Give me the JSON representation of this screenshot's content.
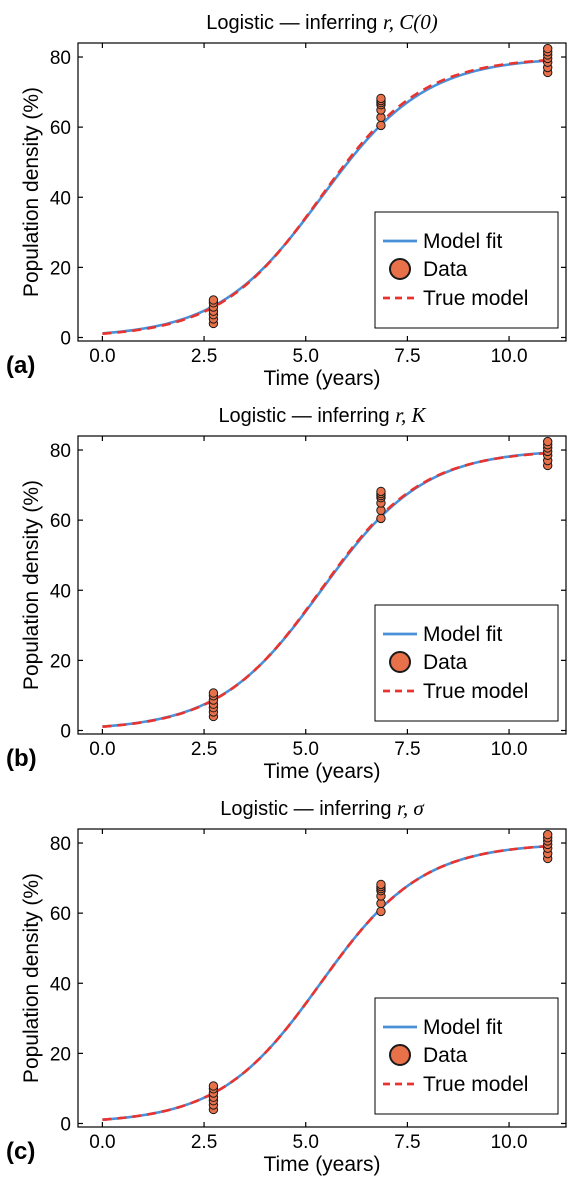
{
  "colors": {
    "model_fit": "#4a90d9",
    "data_fill": "#e8714a",
    "data_edge": "#1a1a1a",
    "true_model": "#e8332f",
    "axis": "#000000"
  },
  "legend": {
    "model_fit": "Model fit",
    "data": "Data",
    "true_model": "True model",
    "placement": "lower right"
  },
  "chart_data": [
    {
      "type": "scatter",
      "panel": "(a)",
      "title_prefix": "Logistic — inferring",
      "title_math": "r, C(0)",
      "xlabel": "Time (years)",
      "ylabel": "Population density (%)",
      "xlim": [
        -0.6,
        11.4
      ],
      "ylim": [
        -1,
        84
      ],
      "xticks": [
        "0.0",
        "2.5",
        "5.0",
        "7.5",
        "10.0"
      ],
      "xtick_values": [
        0,
        2.5,
        5,
        7.5,
        10
      ],
      "yticks": [
        "0",
        "20",
        "40",
        "60",
        "80"
      ],
      "ytick_values": [
        0,
        20,
        40,
        60,
        80
      ],
      "grid": false,
      "model": {
        "r": 0.78,
        "K": 80,
        "C0": 1.18
      },
      "true_model": {
        "r": 0.8,
        "K": 80,
        "C0": 1.08
      },
      "data": [
        {
          "x": 2.73,
          "y": [
            4.0,
            5.3,
            6.5,
            7.5,
            8.7,
            9.9,
            10.7
          ]
        },
        {
          "x": 6.85,
          "y": [
            60.5,
            62.8,
            64.9,
            66.4,
            67.0,
            67.6,
            68.2
          ]
        },
        {
          "x": 10.95,
          "y": [
            75.6,
            77.0,
            78.5,
            79.6,
            80.6,
            81.5,
            82.4
          ]
        }
      ]
    },
    {
      "type": "scatter",
      "panel": "(b)",
      "title_prefix": "Logistic — inferring",
      "title_math": "r, K",
      "xlabel": "Time (years)",
      "ylabel": "Population density (%)",
      "xlim": [
        -0.6,
        11.4
      ],
      "ylim": [
        -1,
        84
      ],
      "xticks": [
        "0.0",
        "2.5",
        "5.0",
        "7.5",
        "10.0"
      ],
      "xtick_values": [
        0,
        2.5,
        5,
        7.5,
        10
      ],
      "yticks": [
        "0",
        "20",
        "40",
        "60",
        "80"
      ],
      "ytick_values": [
        0,
        20,
        40,
        60,
        80
      ],
      "grid": false,
      "model": {
        "r": 0.79,
        "K": 80.2,
        "C0": 1.12
      },
      "true_model": {
        "r": 0.8,
        "K": 80,
        "C0": 1.08
      },
      "data": [
        {
          "x": 2.73,
          "y": [
            4.0,
            5.3,
            6.5,
            7.5,
            8.7,
            9.9,
            10.7
          ]
        },
        {
          "x": 6.85,
          "y": [
            60.5,
            62.8,
            64.9,
            66.4,
            67.0,
            67.6,
            68.2
          ]
        },
        {
          "x": 10.95,
          "y": [
            75.6,
            77.0,
            78.5,
            79.6,
            80.6,
            81.5,
            82.4
          ]
        }
      ]
    },
    {
      "type": "scatter",
      "panel": "(c)",
      "title_prefix": "Logistic — inferring",
      "title_math": "r, σ",
      "xlabel": "Time (years)",
      "ylabel": "Population density (%)",
      "xlim": [
        -0.6,
        11.4
      ],
      "ylim": [
        -1,
        84
      ],
      "xticks": [
        "0.0",
        "2.5",
        "5.0",
        "7.5",
        "10.0"
      ],
      "xtick_values": [
        0,
        2.5,
        5,
        7.5,
        10
      ],
      "yticks": [
        "0",
        "20",
        "40",
        "60",
        "80"
      ],
      "ytick_values": [
        0,
        20,
        40,
        60,
        80
      ],
      "grid": false,
      "model": {
        "r": 0.8,
        "K": 80,
        "C0": 1.08
      },
      "true_model": {
        "r": 0.8,
        "K": 80,
        "C0": 1.08
      },
      "data": [
        {
          "x": 2.73,
          "y": [
            4.0,
            5.3,
            6.5,
            7.5,
            8.7,
            9.9,
            10.7
          ]
        },
        {
          "x": 6.85,
          "y": [
            60.5,
            62.8,
            64.9,
            66.4,
            67.0,
            67.6,
            68.2
          ]
        },
        {
          "x": 10.95,
          "y": [
            75.6,
            77.0,
            78.5,
            79.6,
            80.6,
            81.5,
            82.4
          ]
        }
      ]
    }
  ]
}
